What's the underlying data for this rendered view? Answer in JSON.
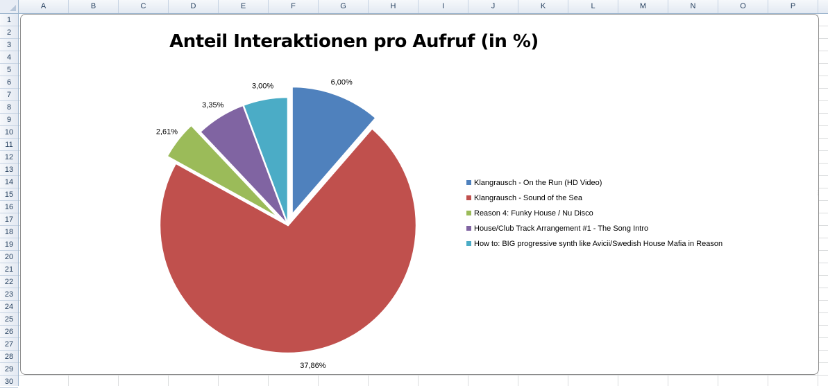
{
  "spreadsheet": {
    "columns": [
      "A",
      "B",
      "C",
      "D",
      "E",
      "F",
      "G",
      "H",
      "I",
      "J",
      "K",
      "L",
      "M",
      "N",
      "O",
      "P"
    ],
    "rows": [
      "1",
      "2",
      "3",
      "4",
      "5",
      "6",
      "7",
      "8",
      "9",
      "10",
      "11",
      "12",
      "13",
      "14",
      "15",
      "16",
      "17",
      "18",
      "19",
      "20",
      "21",
      "22",
      "23",
      "24",
      "25",
      "26",
      "27",
      "28",
      "29",
      "30"
    ]
  },
  "chart_data": {
    "type": "pie",
    "title": "Anteil Interaktionen pro Aufruf (in %)",
    "categories": [
      "Klangrausch - On the Run (HD Video)",
      "Klangrausch - Sound of the Sea",
      "Reason 4: Funky House / Nu Disco",
      "House/Club Track Arrangement #1 - The Song Intro",
      "How to: BIG progressive synth like Avicii/Swedish House Mafia in Reason"
    ],
    "values": [
      6.0,
      37.86,
      2.61,
      3.35,
      3.0
    ],
    "data_labels": [
      "6,00%",
      "37,86%",
      "2,61%",
      "3,35%",
      "3,00%"
    ],
    "colors": [
      "#4f81bd",
      "#c0504d",
      "#9bbb59",
      "#8064a2",
      "#4bacc6"
    ],
    "exploded": [
      true,
      false,
      true,
      false,
      false
    ],
    "legend_position": "right"
  }
}
